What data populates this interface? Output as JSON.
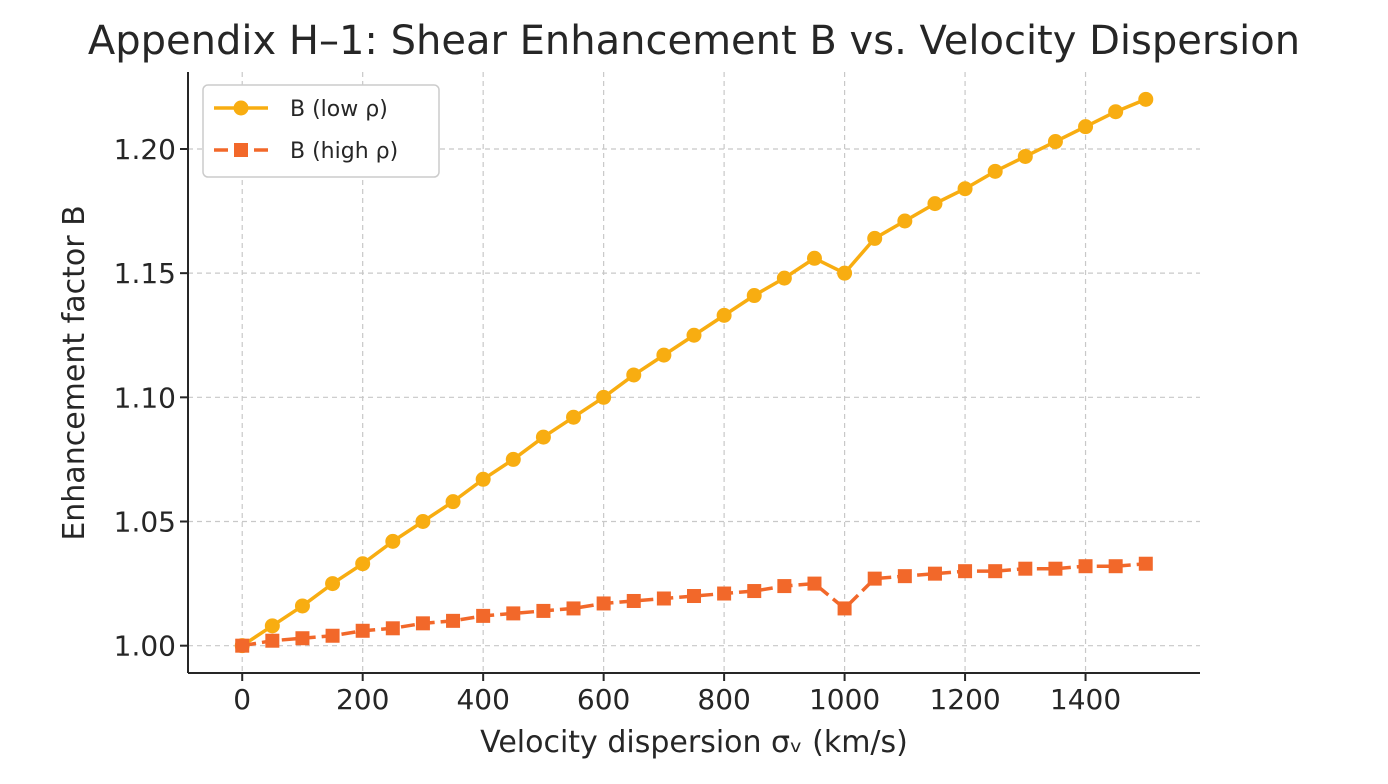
{
  "chart_data": {
    "type": "line",
    "title": "Appendix H–1: Shear Enhancement B vs. Velocity Dispersion",
    "xlabel": "Velocity dispersion σᵥ (km/s)",
    "ylabel": "Enhancement factor B",
    "xlim": [
      -90,
      1590
    ],
    "ylim": [
      0.989,
      1.231
    ],
    "xticks": [
      0,
      200,
      400,
      600,
      800,
      1000,
      1200,
      1400
    ],
    "xtick_labels": [
      "0",
      "200",
      "400",
      "600",
      "800",
      "1000",
      "1200",
      "1400"
    ],
    "yticks": [
      1.0,
      1.05,
      1.1,
      1.15,
      1.2
    ],
    "ytick_labels": [
      "1.00",
      "1.05",
      "1.10",
      "1.15",
      "1.20"
    ],
    "grid": true,
    "legend_position": "top-left",
    "x": [
      0,
      50,
      100,
      150,
      200,
      250,
      300,
      350,
      400,
      450,
      500,
      550,
      600,
      650,
      700,
      750,
      800,
      850,
      900,
      950,
      1000,
      1050,
      1100,
      1150,
      1200,
      1250,
      1300,
      1350,
      1400,
      1450,
      1500
    ],
    "series": [
      {
        "name": "B (low ρ)",
        "color": "#F8AD11",
        "marker": "circle",
        "line_style": "solid",
        "values": [
          1.0,
          1.008,
          1.016,
          1.025,
          1.033,
          1.042,
          1.05,
          1.058,
          1.067,
          1.075,
          1.084,
          1.092,
          1.1,
          1.109,
          1.117,
          1.125,
          1.133,
          1.141,
          1.148,
          1.156,
          1.15,
          1.164,
          1.171,
          1.178,
          1.184,
          1.191,
          1.197,
          1.203,
          1.209,
          1.215,
          1.22
        ]
      },
      {
        "name": "B (high ρ)",
        "color": "#F2682A",
        "marker": "square",
        "line_style": "dashed",
        "values": [
          1.0,
          1.002,
          1.003,
          1.004,
          1.006,
          1.007,
          1.009,
          1.01,
          1.012,
          1.013,
          1.014,
          1.015,
          1.017,
          1.018,
          1.019,
          1.02,
          1.021,
          1.022,
          1.024,
          1.025,
          1.015,
          1.027,
          1.028,
          1.029,
          1.03,
          1.03,
          1.031,
          1.031,
          1.032,
          1.032,
          1.033
        ]
      }
    ]
  }
}
